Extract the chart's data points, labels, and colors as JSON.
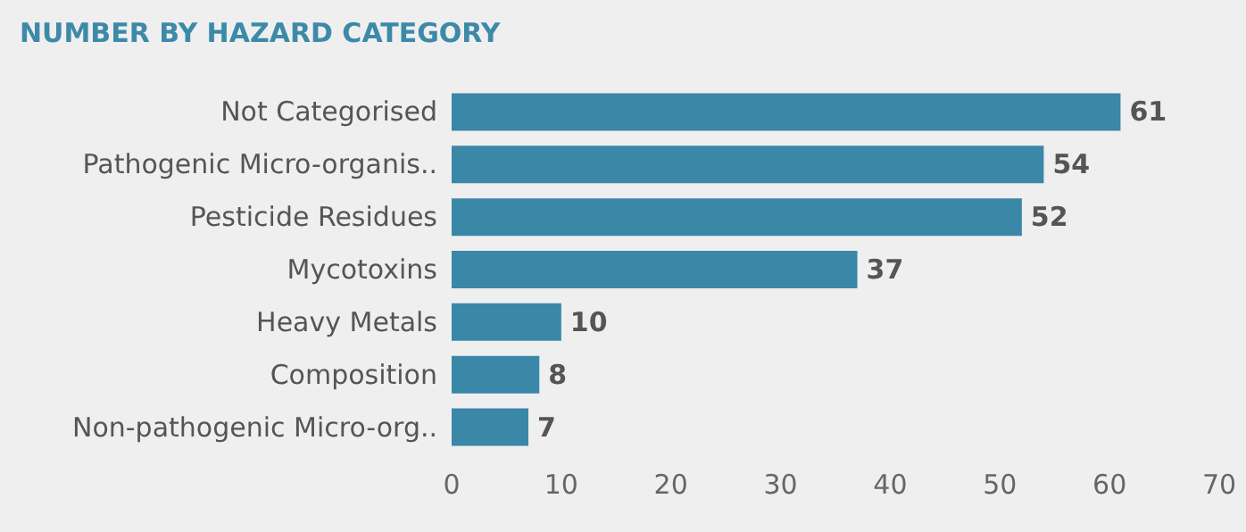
{
  "chart_data": {
    "type": "bar",
    "orientation": "horizontal",
    "title": "NUMBER BY HAZARD CATEGORY",
    "categories": [
      "Not Categorised",
      "Pathogenic Micro-organis..",
      "Pesticide Residues",
      "Mycotoxins",
      "Heavy Metals",
      "Composition",
      "Non-pathogenic Micro-org.."
    ],
    "values": [
      61,
      54,
      52,
      37,
      10,
      8,
      7
    ],
    "color": "#3a87a8",
    "xlim": [
      0,
      70
    ],
    "xticks": [
      0,
      10,
      20,
      30,
      40,
      50,
      60,
      70
    ],
    "grid": false,
    "data_labels": true
  }
}
